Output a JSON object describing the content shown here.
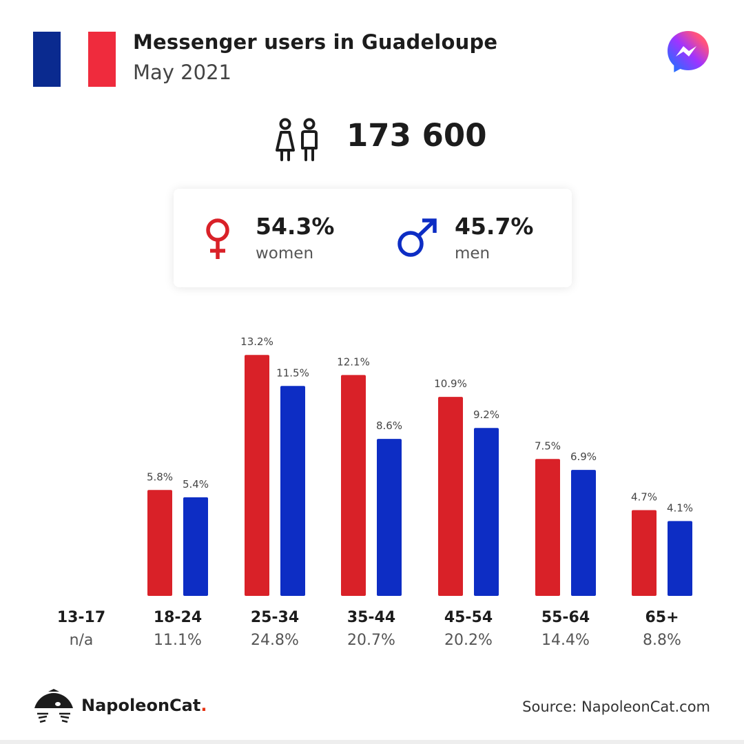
{
  "header": {
    "title": "Messenger users in Guadeloupe",
    "subtitle": "May 2021",
    "flag_colors": [
      "#0a2a8f",
      "#ffffff",
      "#ef2b3d"
    ],
    "app_icon": "messenger-logo-icon"
  },
  "total": {
    "icon": "people-icon",
    "value": "173 600"
  },
  "gender": {
    "women": {
      "icon": "female-symbol-icon",
      "pct": "54.3%",
      "label": "women",
      "color": "#d92128"
    },
    "men": {
      "icon": "male-symbol-icon",
      "pct": "45.7%",
      "label": "men",
      "color": "#0d2dc4"
    }
  },
  "chart_data": {
    "type": "bar",
    "categories": [
      "13-17",
      "18-24",
      "25-34",
      "35-44",
      "45-54",
      "55-64",
      "65+"
    ],
    "category_totals": [
      "n/a",
      "11.1%",
      "24.8%",
      "20.7%",
      "20.2%",
      "14.4%",
      "8.8%"
    ],
    "series": [
      {
        "color": "#d92128",
        "values": [
          null,
          5.8,
          13.2,
          12.1,
          10.9,
          7.5,
          4.7
        ],
        "labels": [
          "",
          "5.8%",
          "13.2%",
          "12.1%",
          "10.9%",
          "7.5%",
          "4.7%"
        ]
      },
      {
        "color": "#0d2dc4",
        "values": [
          null,
          5.4,
          11.5,
          8.6,
          9.2,
          6.9,
          4.1
        ],
        "labels": [
          "",
          "5.4%",
          "11.5%",
          "8.6%",
          "9.2%",
          "6.9%",
          "4.1%"
        ]
      }
    ],
    "ylim": [
      0,
      13.2
    ],
    "grid": false
  },
  "footer": {
    "brand_icon": "napoleoncat-logo-icon",
    "brand": "NapoleonCat",
    "brand_dot": ".",
    "source": "Source: NapoleonCat.com"
  }
}
